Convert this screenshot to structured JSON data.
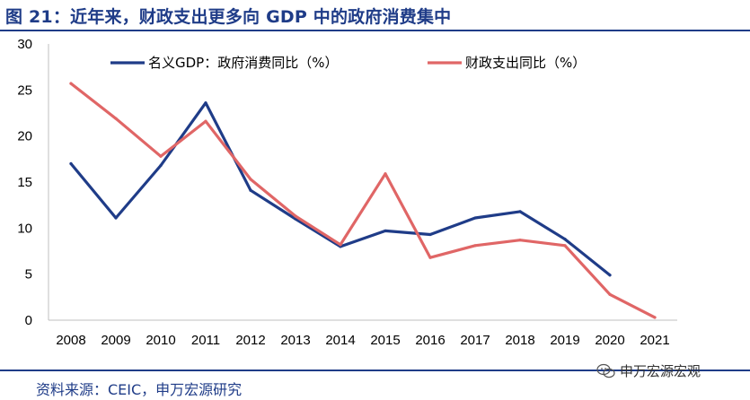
{
  "header": {
    "title": "图 21：近年来，财政支出更多向 GDP 中的政府消费集中"
  },
  "footer": {
    "source": "资料来源：CEIC，申万宏源研究",
    "watermark": "申万宏源宏观"
  },
  "watermark_icon": "wechat-icon",
  "chart_data": {
    "type": "line",
    "x": [
      "2008",
      "2009",
      "2010",
      "2011",
      "2012",
      "2013",
      "2014",
      "2015",
      "2016",
      "2017",
      "2018",
      "2019",
      "2020",
      "2021"
    ],
    "ylim": [
      0,
      30
    ],
    "yticks": [
      "0",
      "5",
      "10",
      "15",
      "20",
      "25",
      "30"
    ],
    "grid": false,
    "legend_position": "top",
    "series": [
      {
        "name": "名义GDP：政府消费同比（%）",
        "color": "#1F3C88",
        "values": [
          17.0,
          11.1,
          16.8,
          23.6,
          14.1,
          11.0,
          8.0,
          9.7,
          9.3,
          11.1,
          11.8,
          8.8,
          4.9,
          null
        ]
      },
      {
        "name": "财政支出同比（%）",
        "color": "#E06666",
        "values": [
          25.7,
          21.9,
          17.8,
          21.6,
          15.3,
          11.3,
          8.2,
          15.9,
          6.8,
          8.1,
          8.7,
          8.1,
          2.8,
          0.3
        ]
      }
    ]
  }
}
